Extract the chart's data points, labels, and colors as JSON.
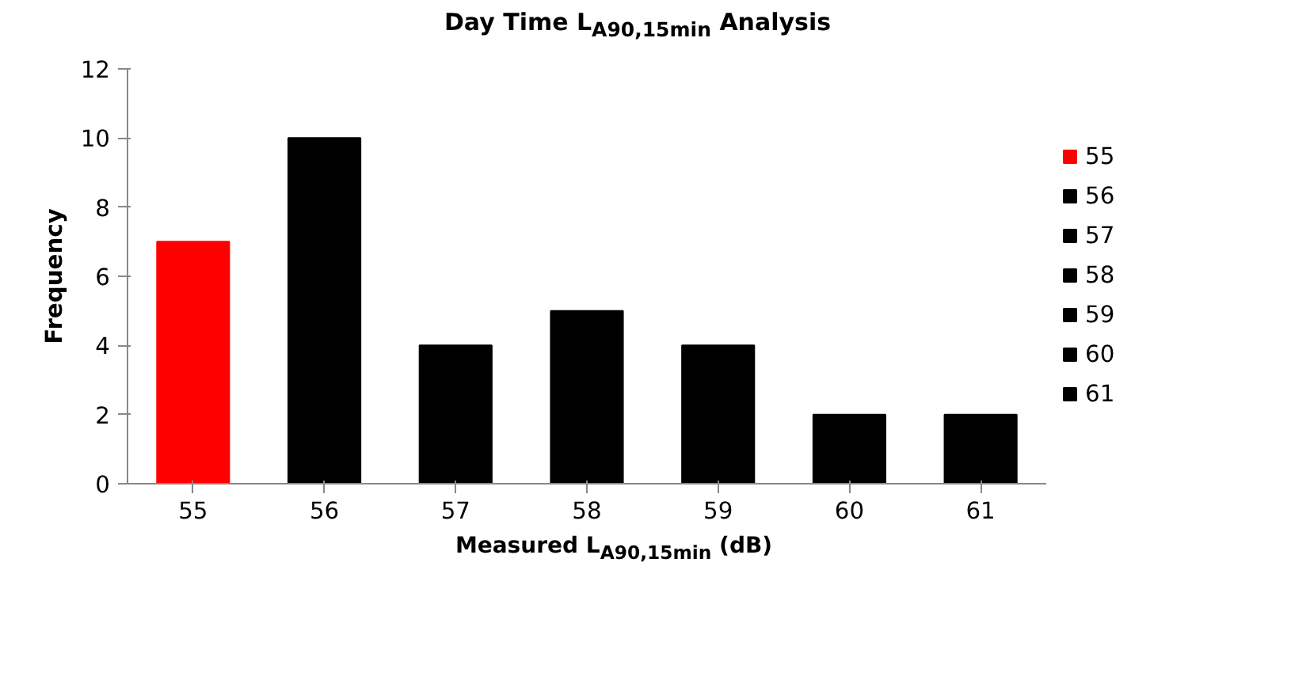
{
  "chart_data": {
    "type": "bar",
    "title": "Day Time L$_{A90,15min}$ Analysis",
    "xlabel": "Measured L$_{A90,15min}$ (dB)",
    "ylabel": "Frequency",
    "categories": [
      "55",
      "56",
      "57",
      "58",
      "59",
      "60",
      "61"
    ],
    "stacked": true,
    "series": [
      {
        "name": "55",
        "color": "#ff0000",
        "values": [
          7,
          null,
          null,
          null,
          null,
          null,
          null
        ]
      },
      {
        "name": "56",
        "color": "#000000",
        "values": [
          null,
          10,
          null,
          null,
          null,
          null,
          null
        ]
      },
      {
        "name": "57",
        "color": "#000000",
        "values": [
          null,
          null,
          4,
          null,
          null,
          null,
          null
        ]
      },
      {
        "name": "58",
        "color": "#000000",
        "values": [
          null,
          null,
          null,
          5,
          null,
          null,
          null
        ]
      },
      {
        "name": "59",
        "color": "#000000",
        "values": [
          null,
          null,
          null,
          null,
          4,
          null,
          null
        ]
      },
      {
        "name": "60",
        "color": "#000000",
        "values": [
          null,
          null,
          null,
          null,
          null,
          2,
          null
        ]
      },
      {
        "name": "61",
        "color": "#000000",
        "values": [
          null,
          null,
          null,
          null,
          null,
          null,
          2
        ]
      }
    ],
    "ylim": [
      0,
      12
    ],
    "yticks": [
      0,
      2,
      4,
      6,
      8,
      10,
      12
    ],
    "grid": false,
    "legend": "right"
  }
}
